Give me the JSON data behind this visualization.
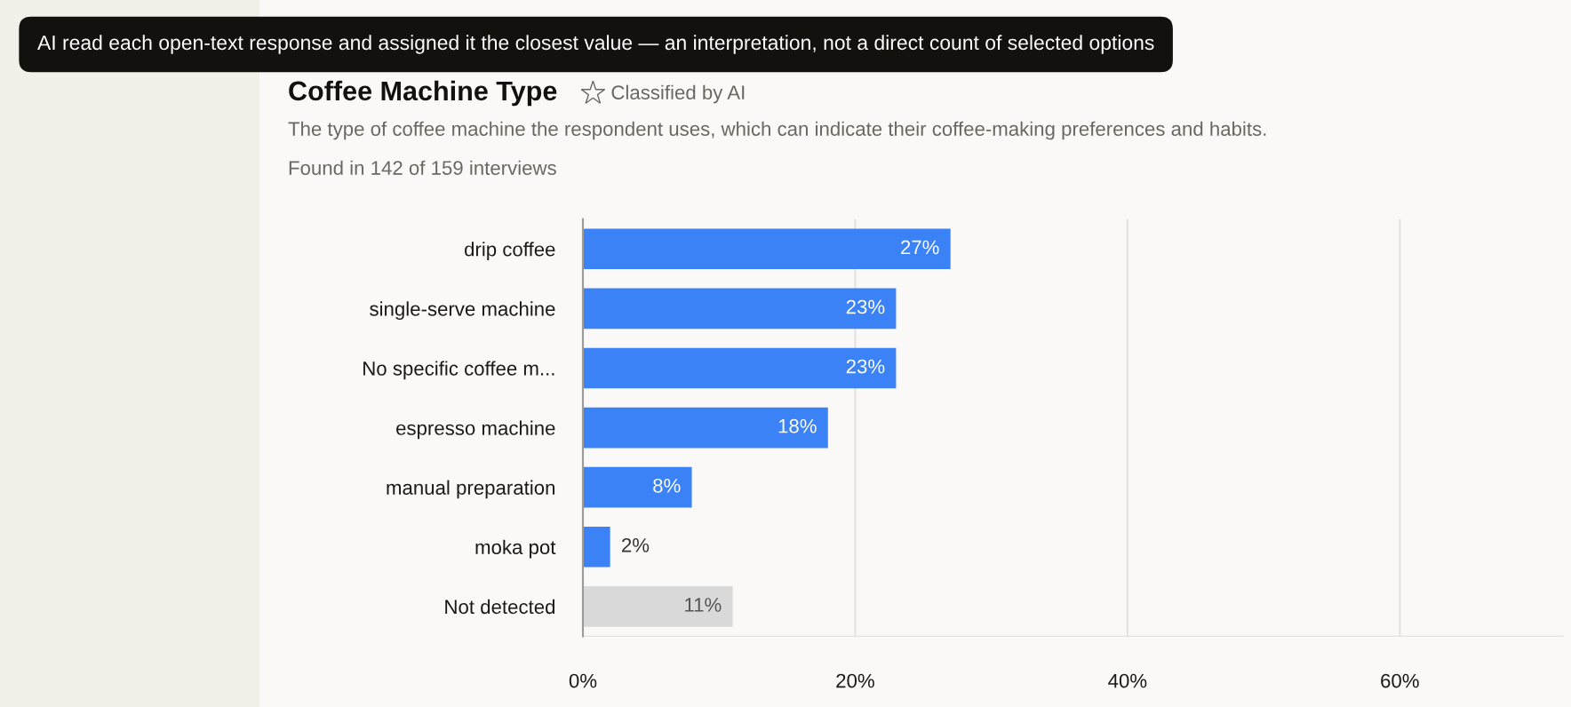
{
  "chart_data": {
    "type": "bar",
    "orientation": "horizontal",
    "title": "Coffee Machine Type",
    "subtitle": "The type of coffee machine the respondent uses, which can indicate their coffee-making preferences and habits.",
    "annotations": [
      "Classified by AI",
      "Found in 142 of 159 interviews",
      "AI read each open-text response and assigned it the closest value — an interpretation, not a direct count of selected options"
    ],
    "categories": [
      "drip coffee",
      "single-serve machine",
      "No specific coffee m...",
      "espresso machine",
      "manual preparation",
      "moka pot",
      "Not detected"
    ],
    "values": [
      27,
      23,
      23,
      18,
      8,
      2,
      11
    ],
    "value_labels": [
      "27%",
      "23%",
      "23%",
      "18%",
      "8%",
      "2%",
      "11%"
    ],
    "colors": [
      "#3b82f6",
      "#3b82f6",
      "#3b82f6",
      "#3b82f6",
      "#3b82f6",
      "#3b82f6",
      "#d9d9d9"
    ],
    "xlim": [
      0,
      72
    ],
    "xticks": [
      {
        "value": 0,
        "label": "0%"
      },
      {
        "value": 20,
        "label": "20%"
      },
      {
        "value": 40,
        "label": "40%"
      },
      {
        "value": 60,
        "label": "60%"
      }
    ],
    "grid": "x",
    "legend": false
  }
}
